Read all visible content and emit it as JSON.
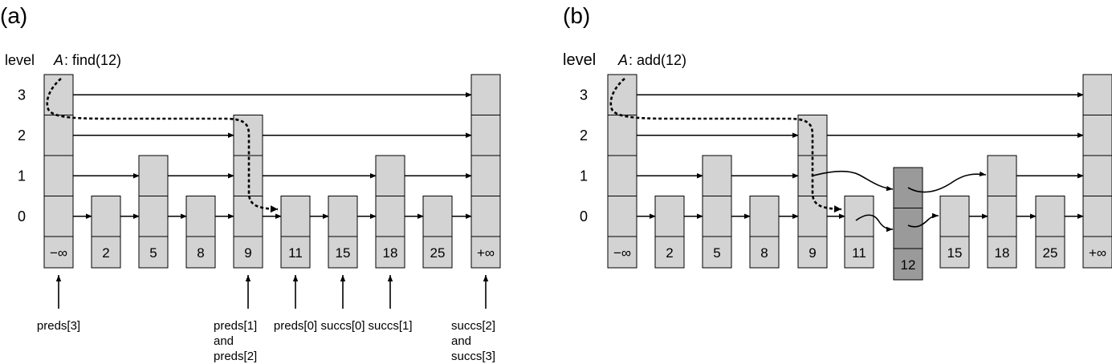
{
  "panel_a": {
    "label": "(a)",
    "level_header": "level",
    "op_var": "A",
    "op_text": ": find(12)",
    "levels": [
      "3",
      "2",
      "1",
      "0"
    ],
    "keys": [
      "−∞",
      "2",
      "5",
      "8",
      "9",
      "11",
      "15",
      "18",
      "25",
      "+∞"
    ],
    "heights": [
      4,
      1,
      2,
      1,
      3,
      1,
      1,
      2,
      1,
      4
    ],
    "pointer_labels": [
      {
        "node": 0,
        "lines": [
          "preds[3]"
        ]
      },
      {
        "node": 4,
        "lines": [
          "preds[1]",
          "and",
          "preds[2]"
        ]
      },
      {
        "node": 5,
        "lines": [
          "preds[0]"
        ]
      },
      {
        "node": 6,
        "lines": [
          "succs[0]"
        ]
      },
      {
        "node": 7,
        "lines": [
          "succs[1]"
        ]
      },
      {
        "node": 9,
        "lines": [
          "succs[2]",
          "and",
          "succs[3]"
        ]
      }
    ]
  },
  "panel_b": {
    "label": "(b)",
    "level_header": "level",
    "op_var": "A",
    "op_text": ": add(12)",
    "levels": [
      "3",
      "2",
      "1",
      "0"
    ],
    "keys": [
      "−∞",
      "2",
      "5",
      "8",
      "9",
      "11",
      "15",
      "18",
      "25",
      "+∞"
    ],
    "heights": [
      4,
      1,
      2,
      1,
      3,
      1,
      1,
      2,
      1,
      4
    ],
    "new_node": {
      "key": "12",
      "height": 2
    }
  },
  "colors": {
    "node_fill": "#d3d3d3",
    "new_node_fill": "#9a9a9a",
    "stroke": "#000000"
  }
}
